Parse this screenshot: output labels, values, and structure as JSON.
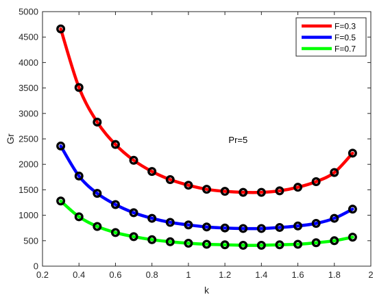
{
  "chart_data": {
    "type": "line",
    "xlabel": "k",
    "ylabel": "Gr",
    "xlim": [
      0.2,
      2
    ],
    "ylim": [
      0,
      5000
    ],
    "xticks": [
      "0.2",
      "0.4",
      "0.6",
      "0.8",
      "1",
      "1.2",
      "1.4",
      "1.6",
      "1.8",
      "2"
    ],
    "yticks": [
      "0",
      "500",
      "1000",
      "1500",
      "2000",
      "2500",
      "3000",
      "3500",
      "4000",
      "4500",
      "5000"
    ],
    "annotation": "Pr=5",
    "legend_position": "top-right",
    "grid": false,
    "x": [
      0.3,
      0.4,
      0.5,
      0.6,
      0.7,
      0.8,
      0.9,
      1.0,
      1.1,
      1.2,
      1.3,
      1.4,
      1.5,
      1.6,
      1.7,
      1.8,
      1.9
    ],
    "series": [
      {
        "name": "F=0.3",
        "color": "#ff0000",
        "values": [
          4660,
          3510,
          2830,
          2390,
          2080,
          1860,
          1700,
          1590,
          1510,
          1470,
          1450,
          1450,
          1480,
          1550,
          1660,
          1840,
          2220
        ]
      },
      {
        "name": "F=0.5",
        "color": "#0000ff",
        "values": [
          2360,
          1770,
          1430,
          1210,
          1050,
          940,
          860,
          810,
          770,
          750,
          740,
          740,
          760,
          790,
          840,
          940,
          1120
        ]
      },
      {
        "name": "F=0.7",
        "color": "#00ff00",
        "values": [
          1280,
          970,
          780,
          660,
          580,
          520,
          480,
          450,
          430,
          420,
          410,
          410,
          420,
          430,
          460,
          500,
          570
        ]
      }
    ]
  }
}
